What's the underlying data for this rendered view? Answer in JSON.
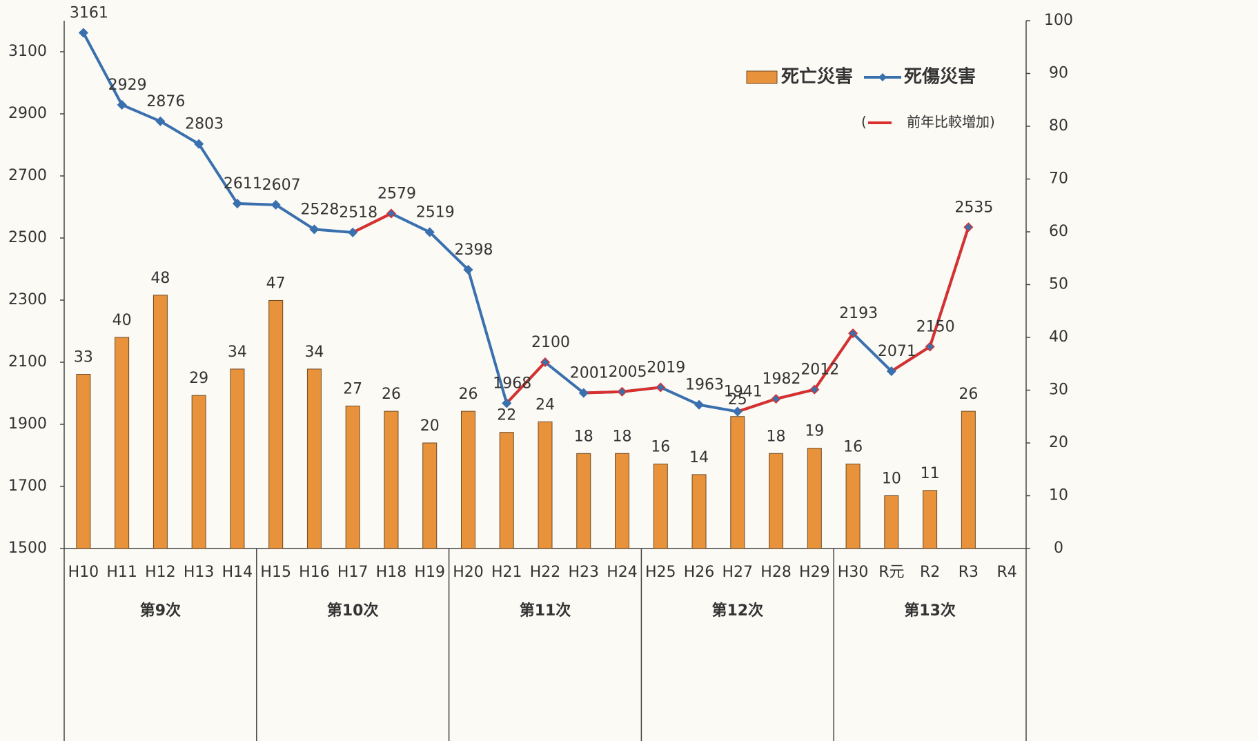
{
  "chart_data": {
    "type": "bar-line",
    "categories": [
      "H10",
      "H11",
      "H12",
      "H13",
      "H14",
      "H15",
      "H16",
      "H17",
      "H18",
      "H19",
      "H20",
      "H21",
      "H22",
      "H23",
      "H24",
      "H25",
      "H26",
      "H27",
      "H28",
      "H29",
      "H30",
      "R元",
      "R2",
      "R3",
      "R4"
    ],
    "series": [
      {
        "name": "死亡災害",
        "type": "bar",
        "axis": "y2",
        "color": "#e8923c",
        "values": [
          33,
          40,
          48,
          29,
          34,
          47,
          34,
          27,
          26,
          20,
          26,
          22,
          24,
          18,
          18,
          16,
          14,
          25,
          18,
          19,
          16,
          10,
          11,
          26,
          null
        ]
      },
      {
        "name": "死傷災害",
        "type": "line",
        "axis": "y",
        "color": "#3a70ae",
        "increase_color": "#d8302e",
        "values": [
          3161,
          2929,
          2876,
          2803,
          2611,
          2607,
          2528,
          2518,
          2579,
          2519,
          2398,
          1968,
          2100,
          2001,
          2005,
          2019,
          1963,
          1941,
          1982,
          2012,
          2193,
          2071,
          2150,
          2535,
          null
        ]
      }
    ],
    "increase_note": {
      "open": "(",
      "label": "前年比較増加)"
    },
    "groups": [
      {
        "label": "第9次",
        "from": "H10",
        "to": "H14"
      },
      {
        "label": "第10次",
        "from": "H15",
        "to": "H19"
      },
      {
        "label": "第11次",
        "from": "H20",
        "to": "H24"
      },
      {
        "label": "第12次",
        "from": "H25",
        "to": "H29"
      },
      {
        "label": "第13次",
        "from": "H30",
        "to": "R4"
      }
    ],
    "ylim": [
      1500,
      3200
    ],
    "yticks": [
      1500,
      1700,
      1900,
      2100,
      2300,
      2500,
      2700,
      2900,
      3100
    ],
    "y2lim": [
      0,
      100
    ],
    "y2ticks": [
      0,
      10,
      20,
      30,
      40,
      50,
      60,
      70,
      80,
      90,
      100
    ],
    "legend": "top-right"
  }
}
